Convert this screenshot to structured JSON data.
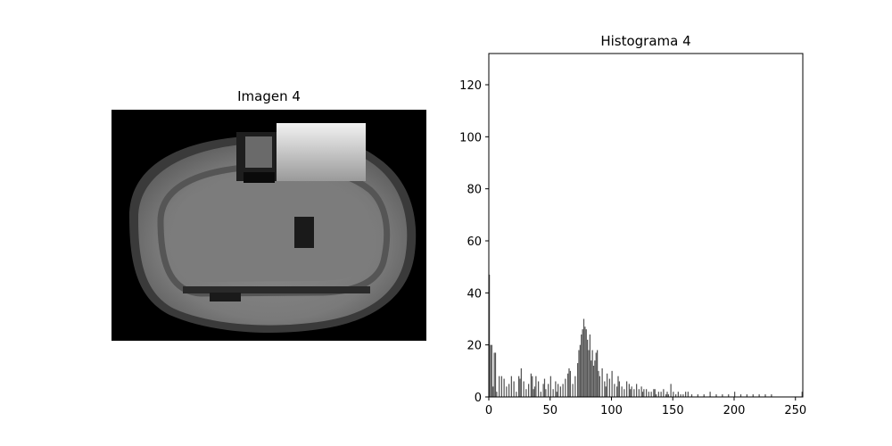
{
  "chart_data": [
    {
      "type": "image",
      "title": "Imagen 4"
    },
    {
      "type": "bar",
      "title": "Histograma 4",
      "xlim": [
        0,
        256
      ],
      "ylim": [
        0,
        132
      ],
      "xticks": [
        0,
        50,
        100,
        150,
        200,
        250
      ],
      "yticks": [
        0,
        20,
        40,
        60,
        80,
        100,
        120
      ],
      "bar_color": "#555555",
      "x": [
        0,
        1,
        2,
        3,
        4,
        5,
        6,
        8,
        10,
        12,
        14,
        16,
        18,
        20,
        22,
        24,
        25,
        26,
        28,
        30,
        32,
        34,
        35,
        36,
        37,
        38,
        40,
        42,
        44,
        45,
        46,
        48,
        50,
        52,
        54,
        55,
        56,
        58,
        60,
        62,
        64,
        65,
        66,
        68,
        70,
        72,
        73,
        74,
        75,
        76,
        77,
        78,
        79,
        80,
        81,
        82,
        83,
        84,
        85,
        86,
        87,
        88,
        89,
        90,
        92,
        94,
        95,
        96,
        98,
        100,
        102,
        104,
        105,
        106,
        108,
        110,
        112,
        114,
        115,
        116,
        118,
        120,
        122,
        124,
        125,
        126,
        128,
        130,
        132,
        134,
        135,
        136,
        138,
        140,
        142,
        144,
        145,
        146,
        148,
        150,
        152,
        154,
        156,
        158,
        160,
        162,
        165,
        170,
        175,
        180,
        185,
        190,
        195,
        200,
        205,
        210,
        215,
        220,
        225,
        230,
        255
      ],
      "y": [
        47,
        20,
        20,
        4,
        17,
        17,
        2,
        8,
        8,
        7,
        4,
        5,
        8,
        6,
        2,
        8,
        7,
        11,
        6,
        3,
        5,
        9,
        8,
        3,
        4,
        8,
        6,
        2,
        5,
        7,
        3,
        5,
        8,
        3,
        6,
        2,
        5,
        4,
        5,
        7,
        9,
        11,
        10,
        5,
        8,
        13,
        18,
        20,
        24,
        26,
        30,
        27,
        26,
        22,
        18,
        24,
        14,
        18,
        12,
        14,
        17,
        18,
        10,
        8,
        11,
        6,
        4,
        9,
        7,
        10,
        5,
        4,
        8,
        6,
        4,
        3,
        6,
        5,
        3,
        4,
        3,
        5,
        3,
        4,
        2,
        3,
        3,
        2,
        2,
        3,
        3,
        1,
        2,
        2,
        3,
        1,
        2,
        1,
        5,
        2,
        1,
        2,
        1,
        1,
        2,
        2,
        1,
        1,
        1,
        2,
        1,
        1,
        1,
        2,
        1,
        1,
        1,
        1,
        1,
        1,
        2
      ]
    }
  ]
}
